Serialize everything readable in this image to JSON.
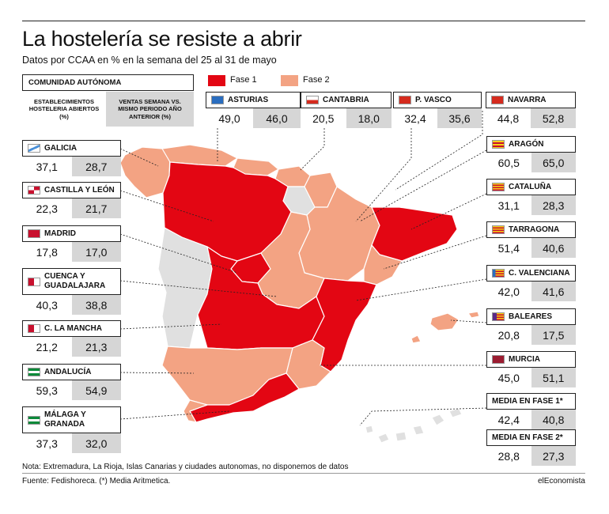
{
  "title": "La hostelería se resiste a abrir",
  "subtitle": "Datos por CCAA en % en la semana del 25 al 31 de mayo",
  "header": {
    "region_col": "COMUNIDAD AUTÓNOMA",
    "col_a": "ESTABLECIMIENTOS HOSTELERIA ABIERTOS (%)",
    "col_b": "VENTAS SEMANA VS. MISMO PERIODO AÑO ANTERIOR (%)"
  },
  "legend": {
    "fase1": "Fase 1",
    "fase2": "Fase 2",
    "fase1_color": "#e30613",
    "fase2_color": "#f3a383"
  },
  "regions": {
    "asturias": {
      "name": "ASTURIAS",
      "a": "49,0",
      "b": "46,0",
      "icon": "asturias-flag-icon"
    },
    "cantabria": {
      "name": "CANTABRIA",
      "a": "20,5",
      "b": "18,0",
      "icon": "cantabria-flag-icon"
    },
    "pvasco": {
      "name": "P. VASCO",
      "a": "32,4",
      "b": "35,6",
      "icon": "pais-vasco-flag-icon"
    },
    "navarra": {
      "name": "NAVARRA",
      "a": "44,8",
      "b": "52,8",
      "icon": "navarra-flag-icon"
    },
    "galicia": {
      "name": "GALICIA",
      "a": "37,1",
      "b": "28,7",
      "icon": "galicia-flag-icon"
    },
    "cyl": {
      "name": "CASTILLA Y LEÓN",
      "a": "22,3",
      "b": "21,7",
      "icon": "castilla-leon-flag-icon"
    },
    "madrid": {
      "name": "MADRID",
      "a": "17,8",
      "b": "17,0",
      "icon": "madrid-flag-icon"
    },
    "cuenca": {
      "name": "CUENCA Y GUADALAJARA",
      "a": "40,3",
      "b": "38,8",
      "icon": "castilla-la-mancha-flag-icon"
    },
    "clm": {
      "name": "C. LA MANCHA",
      "a": "21,2",
      "b": "21,3",
      "icon": "castilla-la-mancha-flag-icon"
    },
    "andalucia": {
      "name": "ANDALUCÍA",
      "a": "59,3",
      "b": "54,9",
      "icon": "andalucia-flag-icon"
    },
    "malaga": {
      "name": "MÁLAGA Y GRANADA",
      "a": "37,3",
      "b": "32,0",
      "icon": "andalucia-flag-icon"
    },
    "aragon": {
      "name": "ARAGÓN",
      "a": "60,5",
      "b": "65,0",
      "icon": "aragon-flag-icon"
    },
    "cataluna": {
      "name": "CATALUÑA",
      "a": "31,1",
      "b": "28,3",
      "icon": "cataluna-flag-icon"
    },
    "tarragona": {
      "name": "TARRAGONA",
      "a": "51,4",
      "b": "40,6",
      "icon": "cataluna-flag-icon"
    },
    "valenciana": {
      "name": "C. VALENCIANA",
      "a": "42,0",
      "b": "41,6",
      "icon": "valencia-flag-icon"
    },
    "baleares": {
      "name": "BALEARES",
      "a": "20,8",
      "b": "17,5",
      "icon": "baleares-flag-icon"
    },
    "murcia": {
      "name": "MURCIA",
      "a": "45,0",
      "b": "51,1",
      "icon": "murcia-flag-icon"
    },
    "media1": {
      "name": "MEDIA EN FASE 1*",
      "a": "42,4",
      "b": "40,8"
    },
    "media2": {
      "name": "MEDIA EN FASE 2*",
      "a": "28,8",
      "b": "27,3"
    }
  },
  "note": "Nota: Extremadura, La Rioja, Islas Canarias y ciudades autonomas, no disponemos de datos",
  "source": "Fuente: Fedishoreca. (*) Media Aritmetica.",
  "brand": "elEconomista"
}
